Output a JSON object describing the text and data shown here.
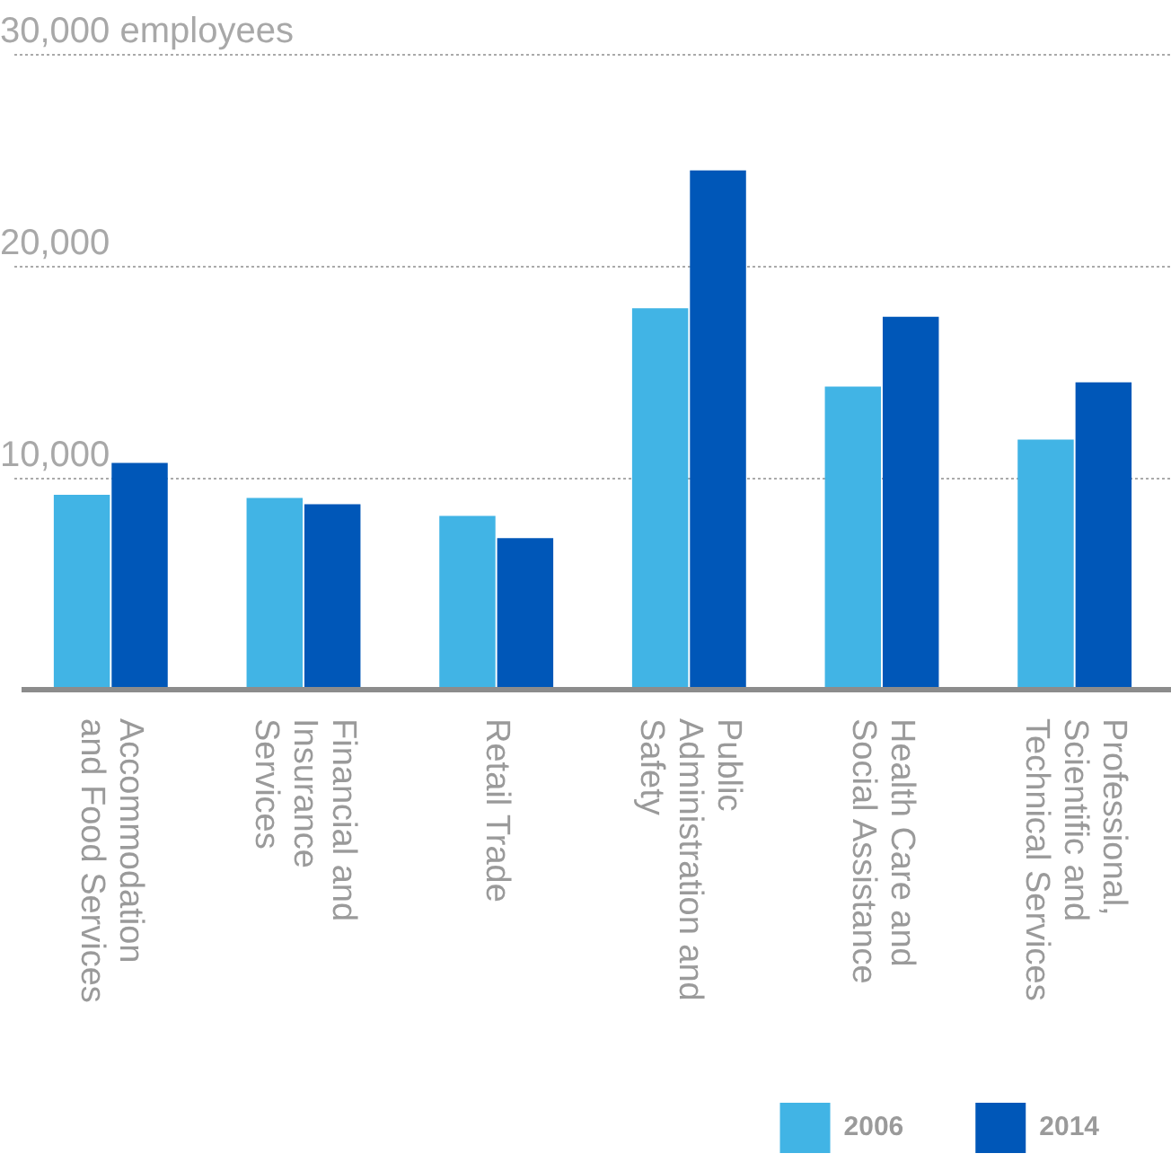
{
  "chart_data": {
    "type": "bar",
    "ylabel": "employees",
    "categories": [
      "Accommodation and Food Services",
      "Financial and Insurance Services",
      "Retail Trade",
      "Public Administration and Safety",
      "Health Care and Social Assistance",
      "Professional, Scientific and Technical Services"
    ],
    "series": [
      {
        "name": "2006",
        "color": "#41b4e5",
        "values": [
          9200,
          9050,
          8200,
          18000,
          14300,
          11800
        ]
      },
      {
        "name": "2014",
        "color": "#0057b8",
        "values": [
          10700,
          8750,
          7150,
          24500,
          17600,
          14500
        ]
      }
    ],
    "ylim": [
      0,
      30000
    ],
    "yticks": [
      {
        "value": 0,
        "label": null
      },
      {
        "value": 10000,
        "label": "10,000"
      },
      {
        "value": 20000,
        "label": "20,000"
      },
      {
        "value": 30000,
        "label": "30,000"
      }
    ],
    "grid": "y",
    "legend": "bottom right"
  }
}
